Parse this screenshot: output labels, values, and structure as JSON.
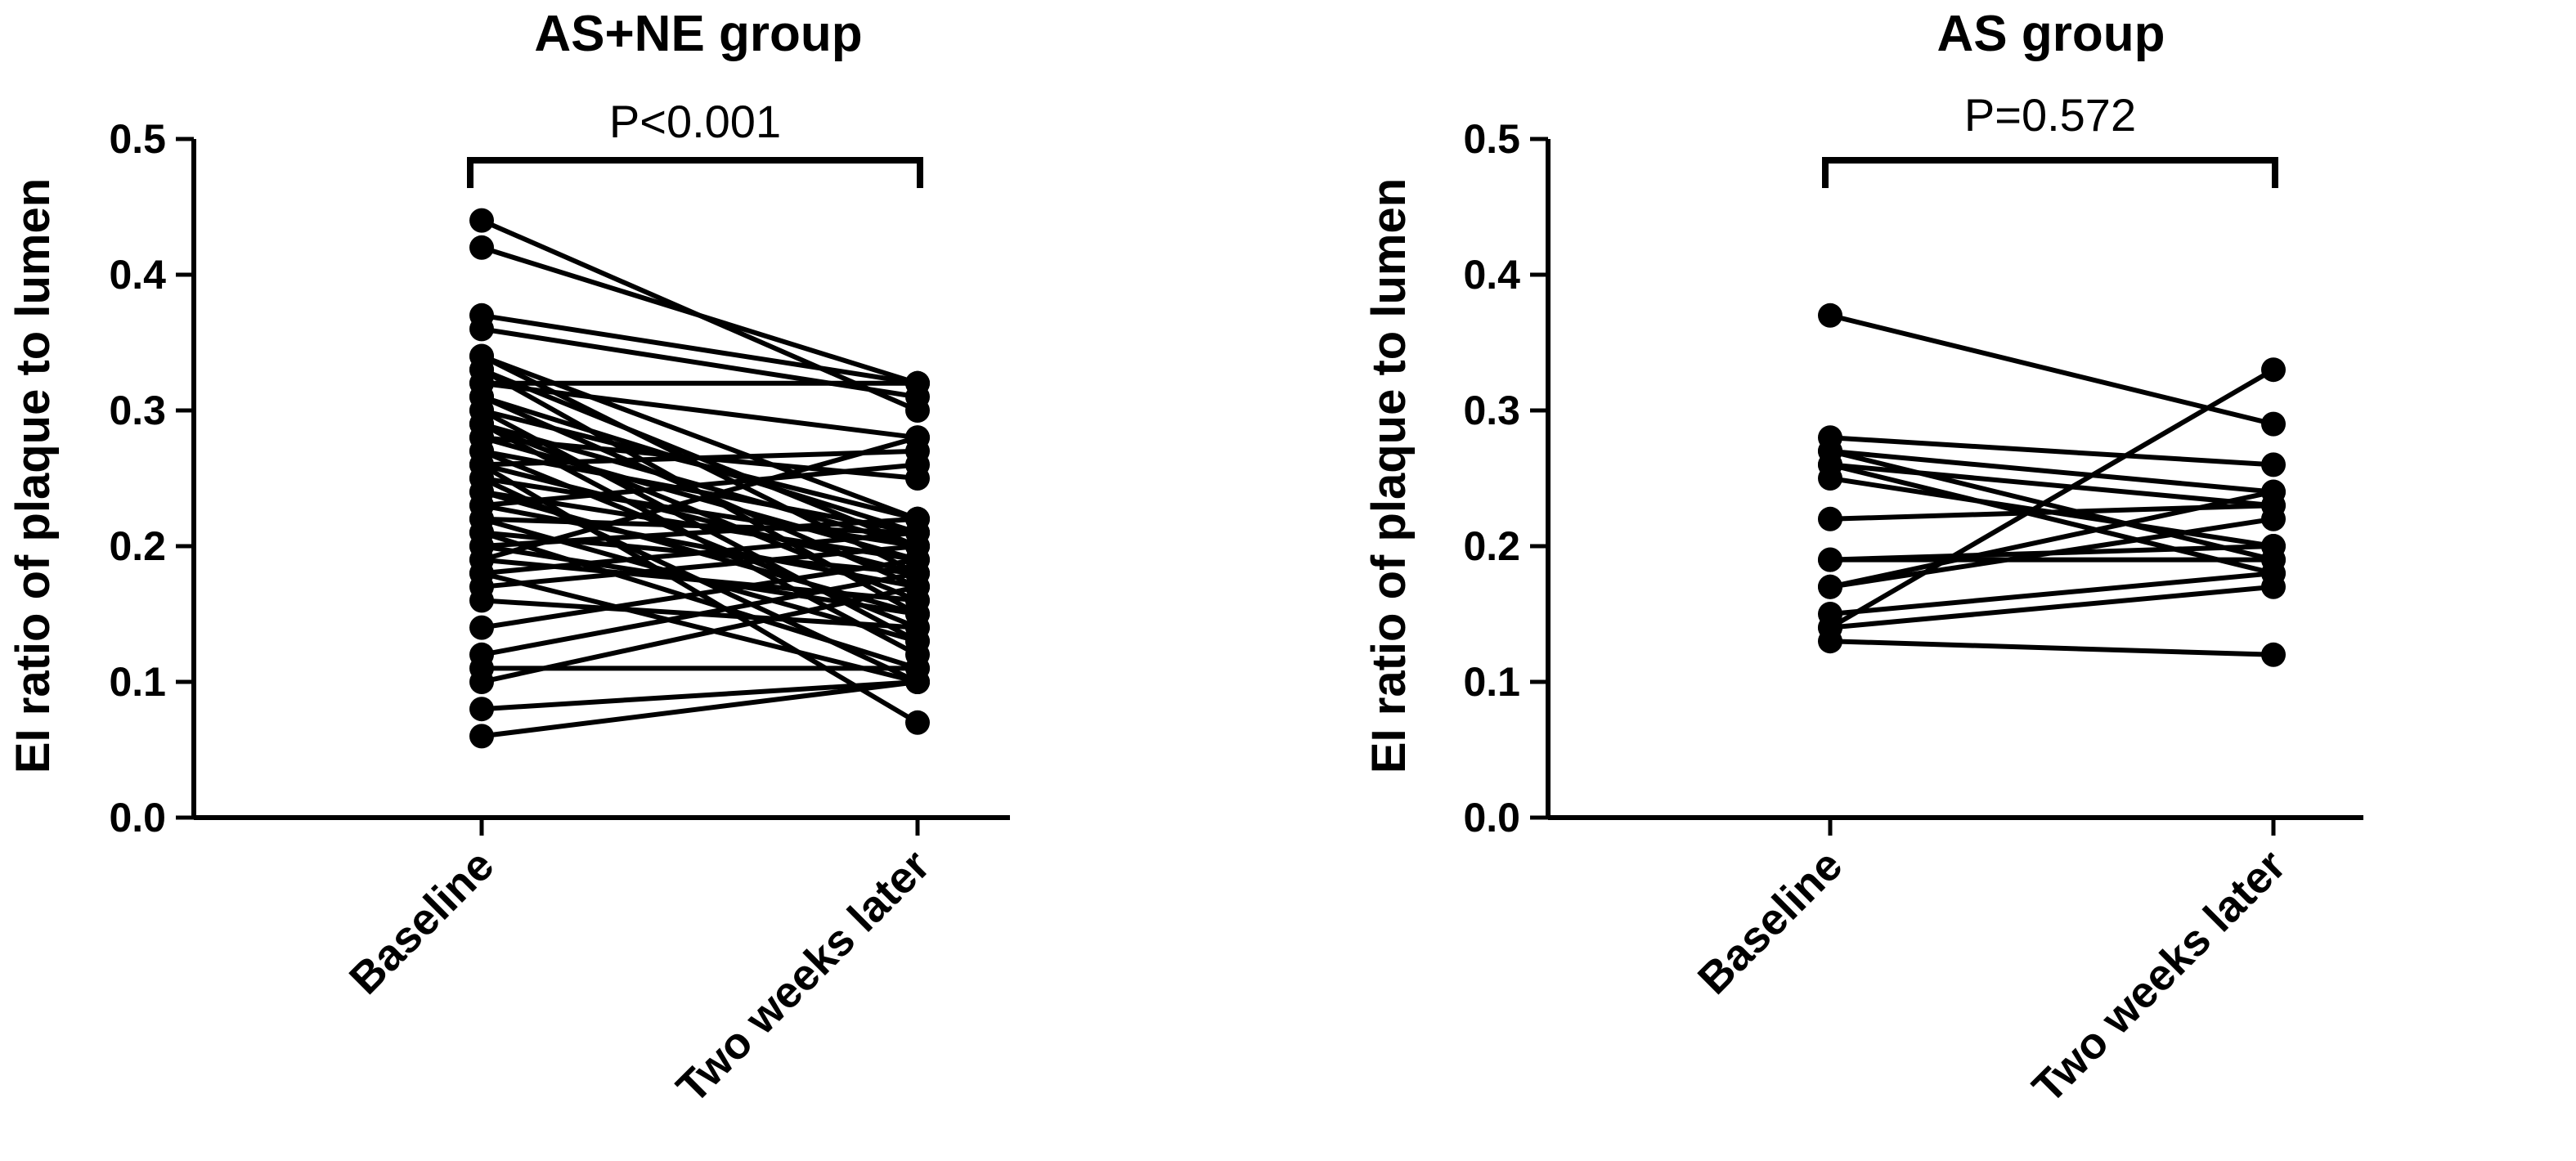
{
  "chart_data": [
    {
      "type": "line",
      "title": "AS+NE group",
      "ylabel": "EI ratio of plaque to lumen",
      "categories": [
        "Baseline",
        "Two weeks later"
      ],
      "ylim": [
        0,
        0.5
      ],
      "yticks": [
        "0.0",
        "0.1",
        "0.2",
        "0.3",
        "0.4",
        "0.5"
      ],
      "annotation": "P<0.001",
      "grid": false,
      "series": [
        {
          "values": [
            0.44,
            0.3
          ]
        },
        {
          "values": [
            0.42,
            0.32
          ]
        },
        {
          "values": [
            0.37,
            0.32
          ]
        },
        {
          "values": [
            0.36,
            0.31
          ]
        },
        {
          "values": [
            0.34,
            0.22
          ]
        },
        {
          "values": [
            0.34,
            0.18
          ]
        },
        {
          "values": [
            0.33,
            0.2
          ]
        },
        {
          "values": [
            0.33,
            0.15
          ]
        },
        {
          "values": [
            0.32,
            0.32
          ]
        },
        {
          "values": [
            0.32,
            0.28
          ]
        },
        {
          "values": [
            0.31,
            0.21
          ]
        },
        {
          "values": [
            0.31,
            0.17
          ]
        },
        {
          "values": [
            0.3,
            0.22
          ]
        },
        {
          "values": [
            0.3,
            0.13
          ]
        },
        {
          "values": [
            0.29,
            0.2
          ]
        },
        {
          "values": [
            0.29,
            0.16
          ]
        },
        {
          "values": [
            0.28,
            0.25
          ]
        },
        {
          "values": [
            0.28,
            0.19
          ]
        },
        {
          "values": [
            0.27,
            0.21
          ]
        },
        {
          "values": [
            0.27,
            0.14
          ]
        },
        {
          "values": [
            0.26,
            0.27
          ]
        },
        {
          "values": [
            0.26,
            0.18
          ]
        },
        {
          "values": [
            0.25,
            0.1
          ]
        },
        {
          "values": [
            0.25,
            0.2
          ]
        },
        {
          "values": [
            0.24,
            0.19
          ]
        },
        {
          "values": [
            0.24,
            0.15
          ]
        },
        {
          "values": [
            0.23,
            0.26
          ]
        },
        {
          "values": [
            0.23,
            0.17
          ]
        },
        {
          "values": [
            0.22,
            0.21
          ]
        },
        {
          "values": [
            0.22,
            0.13
          ]
        },
        {
          "values": [
            0.21,
            0.18
          ]
        },
        {
          "values": [
            0.21,
            0.11
          ]
        },
        {
          "values": [
            0.2,
            0.22
          ]
        },
        {
          "values": [
            0.2,
            0.15
          ]
        },
        {
          "values": [
            0.19,
            0.28
          ]
        },
        {
          "values": [
            0.19,
            0.16
          ]
        },
        {
          "values": [
            0.18,
            0.21
          ]
        },
        {
          "values": [
            0.18,
            0.1
          ]
        },
        {
          "values": [
            0.17,
            0.2
          ]
        },
        {
          "values": [
            0.16,
            0.14
          ]
        },
        {
          "values": [
            0.14,
            0.19
          ]
        },
        {
          "values": [
            0.12,
            0.18
          ]
        },
        {
          "values": [
            0.11,
            0.11
          ]
        },
        {
          "values": [
            0.1,
            0.17
          ]
        },
        {
          "values": [
            0.08,
            0.1
          ]
        },
        {
          "values": [
            0.06,
            0.1
          ]
        },
        {
          "values": [
            0.26,
            0.07
          ]
        },
        {
          "values": [
            0.29,
            0.12
          ]
        }
      ]
    },
    {
      "type": "line",
      "title": "AS group",
      "ylabel": "EI ratio of plaque to lumen",
      "categories": [
        "Baseline",
        "Two weeks later"
      ],
      "ylim": [
        0,
        0.5
      ],
      "yticks": [
        "0.0",
        "0.1",
        "0.2",
        "0.3",
        "0.4",
        "0.5"
      ],
      "annotation": "P=0.572",
      "grid": false,
      "series": [
        {
          "values": [
            0.37,
            0.29
          ]
        },
        {
          "values": [
            0.28,
            0.26
          ]
        },
        {
          "values": [
            0.27,
            0.24
          ]
        },
        {
          "values": [
            0.27,
            0.19
          ]
        },
        {
          "values": [
            0.26,
            0.23
          ]
        },
        {
          "values": [
            0.26,
            0.18
          ]
        },
        {
          "values": [
            0.25,
            0.2
          ]
        },
        {
          "values": [
            0.22,
            0.23
          ]
        },
        {
          "values": [
            0.19,
            0.19
          ]
        },
        {
          "values": [
            0.19,
            0.2
          ]
        },
        {
          "values": [
            0.17,
            0.22
          ]
        },
        {
          "values": [
            0.17,
            0.24
          ]
        },
        {
          "values": [
            0.15,
            0.18
          ]
        },
        {
          "values": [
            0.14,
            0.33
          ]
        },
        {
          "values": [
            0.14,
            0.17
          ]
        },
        {
          "values": [
            0.13,
            0.12
          ]
        }
      ]
    }
  ]
}
